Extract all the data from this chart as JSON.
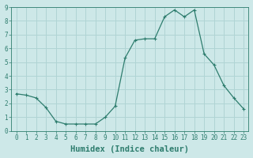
{
  "x": [
    0,
    1,
    2,
    3,
    4,
    5,
    6,
    7,
    8,
    9,
    10,
    11,
    12,
    13,
    14,
    15,
    16,
    17,
    18,
    19,
    20,
    21,
    22,
    23
  ],
  "y": [
    2.7,
    2.6,
    2.4,
    1.7,
    0.7,
    0.5,
    0.5,
    0.5,
    0.5,
    1.0,
    1.8,
    5.3,
    6.6,
    6.7,
    6.7,
    8.3,
    8.8,
    8.3,
    8.8,
    5.6,
    4.8,
    3.3,
    2.4,
    1.6
  ],
  "line_color": "#2e7d6e",
  "marker": "+",
  "marker_size": 3,
  "marker_lw": 0.8,
  "line_width": 0.9,
  "background_color": "#cde8e8",
  "grid_color": "#b0d4d4",
  "xlabel": "Humidex (Indice chaleur)",
  "xlim": [
    -0.5,
    23.5
  ],
  "ylim": [
    0,
    9
  ],
  "xtick_labels": [
    "0",
    "1",
    "2",
    "3",
    "4",
    "5",
    "6",
    "7",
    "8",
    "9",
    "10",
    "11",
    "12",
    "13",
    "14",
    "15",
    "16",
    "17",
    "18",
    "19",
    "20",
    "21",
    "22",
    "23"
  ],
  "ytick_values": [
    0,
    1,
    2,
    3,
    4,
    5,
    6,
    7,
    8,
    9
  ],
  "tick_fontsize": 5.5,
  "xlabel_fontsize": 7.5,
  "label_color": "#2e7d6e"
}
